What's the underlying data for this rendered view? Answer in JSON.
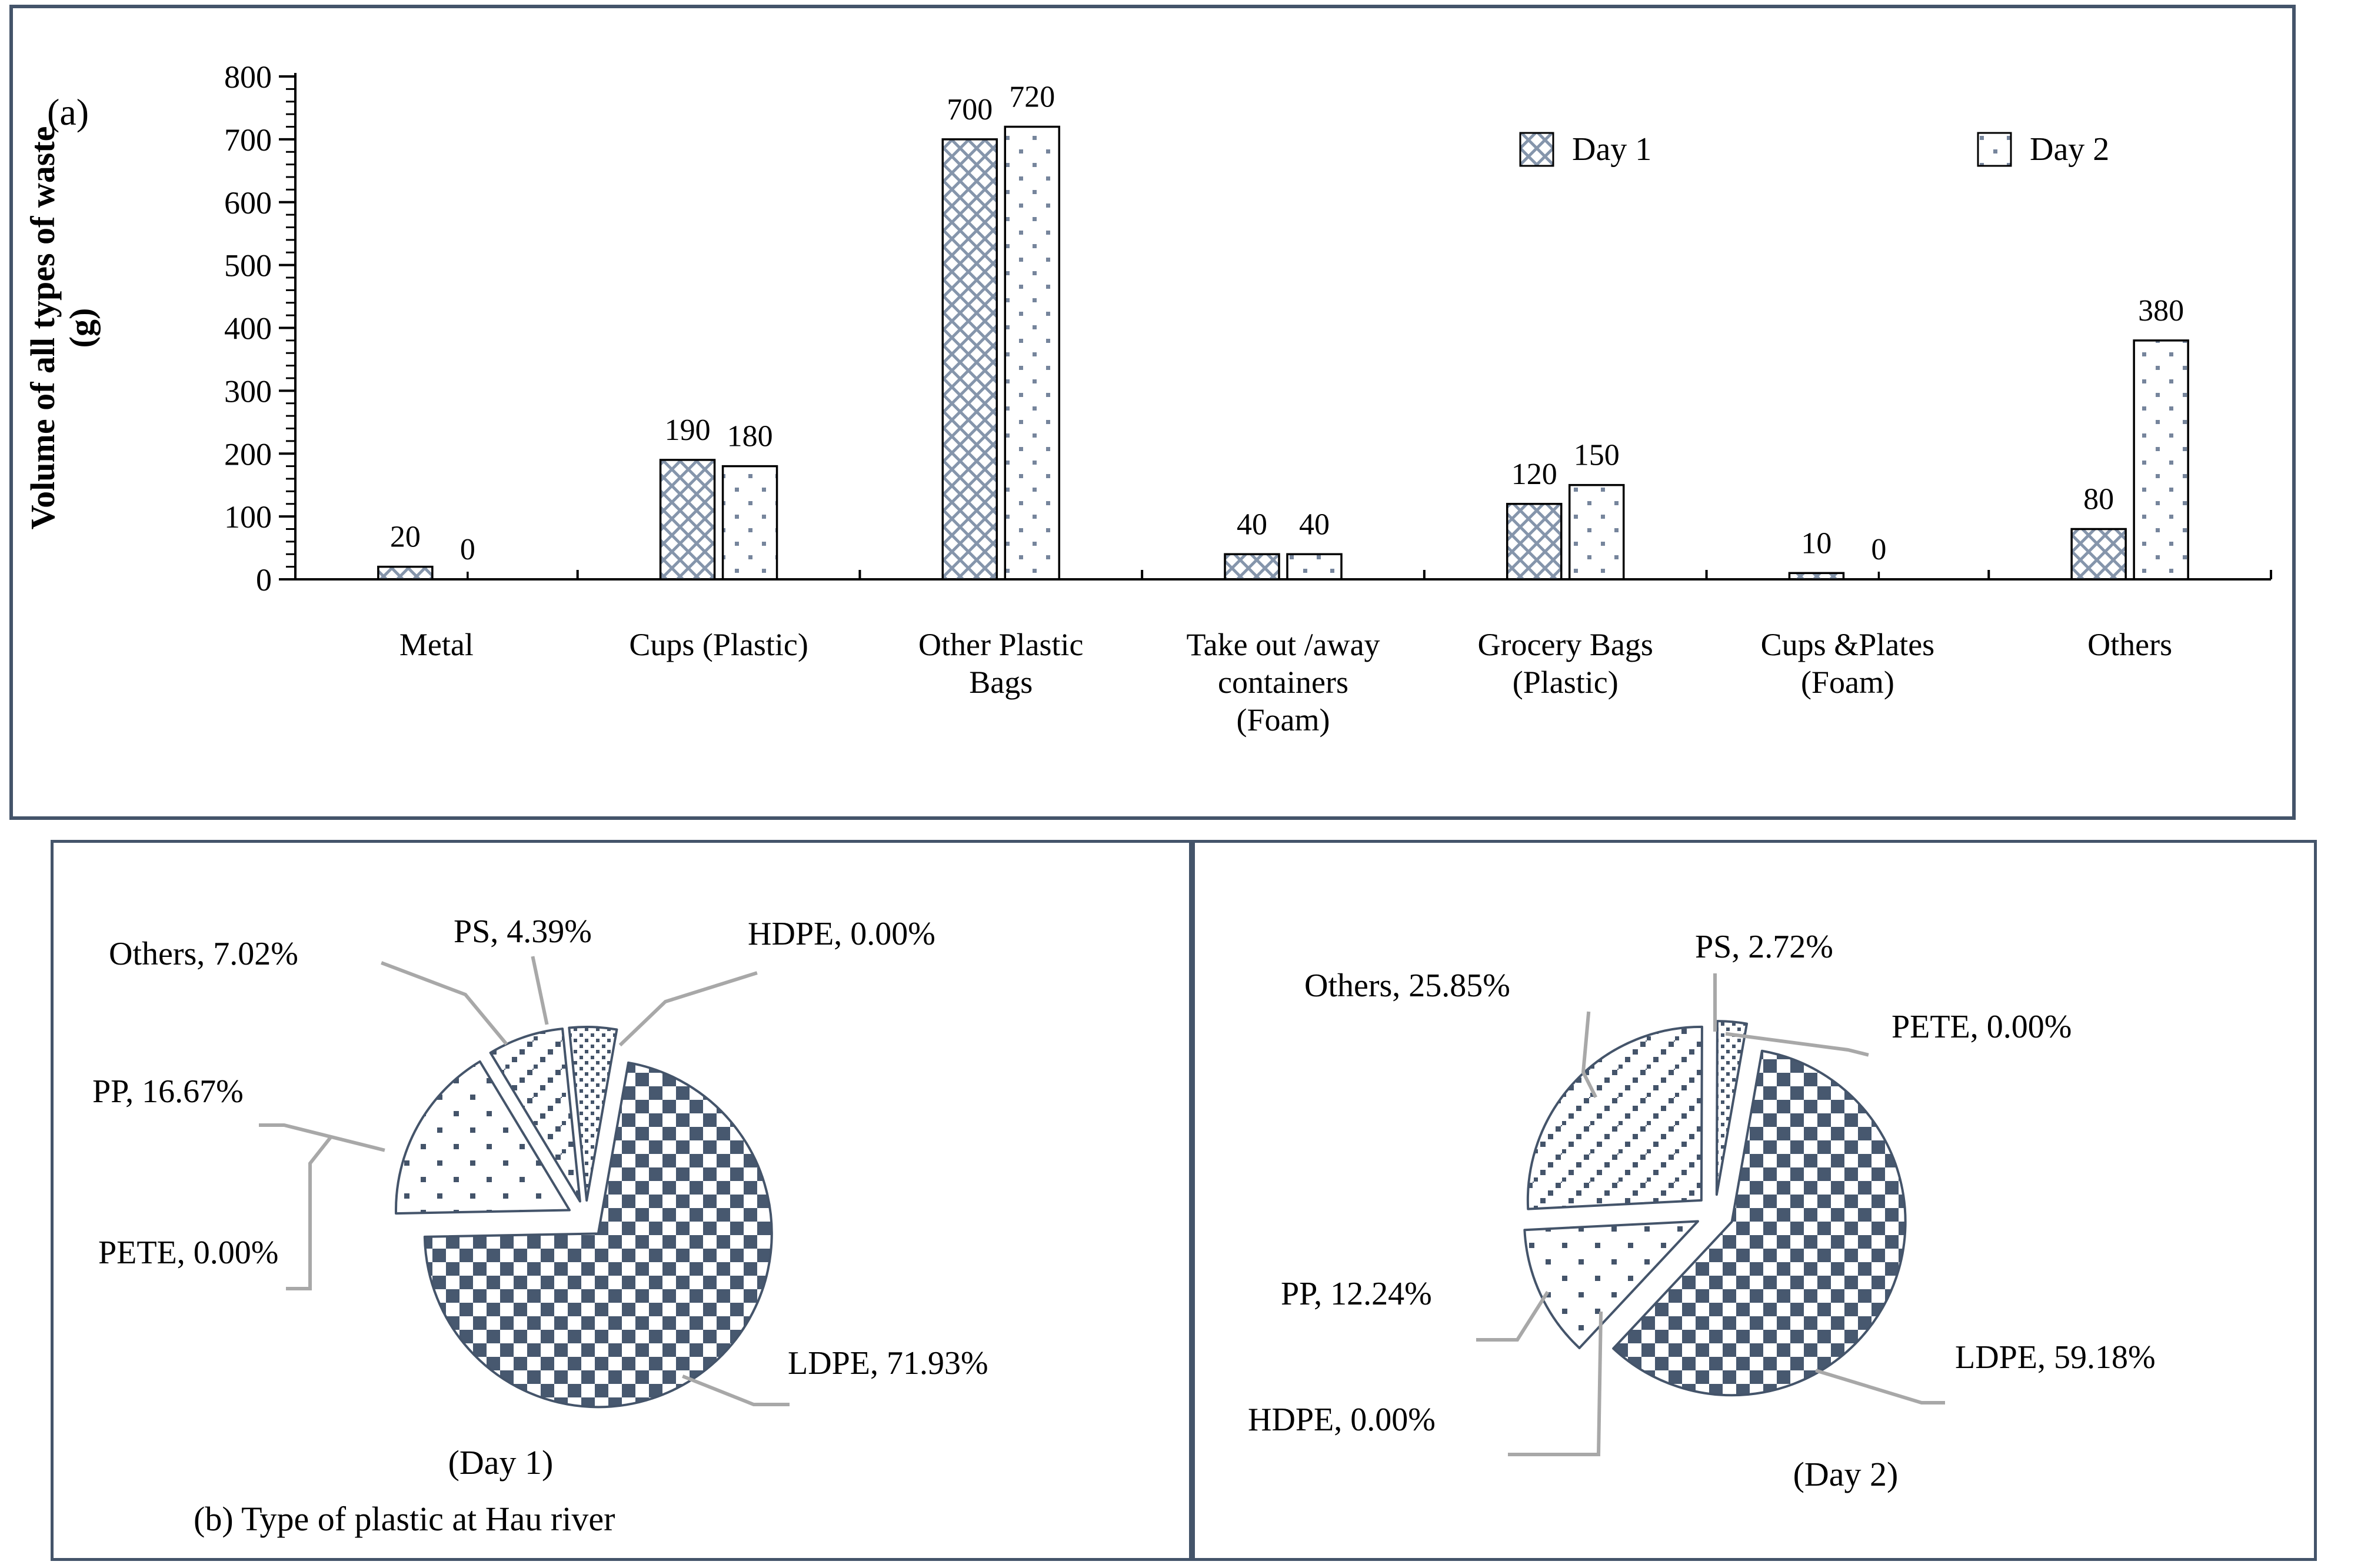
{
  "figure": {
    "panel_a_tag": "(a)",
    "panel_b_caption": "(b) Type of plastic at Hau river"
  },
  "colors": {
    "slate": "#44546A",
    "pattern_light": "#8595AB",
    "dot_light": "#76859C",
    "checker": "#47586F",
    "leader": "#A8A8A8",
    "axis": "#000000"
  },
  "chart_data": [
    {
      "type": "bar",
      "title": "",
      "ylabel_lines": [
        "Volume of all types of waste",
        "(g)"
      ],
      "ylim": [
        0,
        800
      ],
      "ytick_step": 100,
      "minor_step": 20,
      "grid": false,
      "legend_position": "top-right",
      "categories": [
        [
          "Metal"
        ],
        [
          "Cups (Plastic)"
        ],
        [
          "Other Plastic",
          "Bags"
        ],
        [
          "Take out /away",
          "containers",
          "(Foam)"
        ],
        [
          "Grocery Bags",
          "(Plastic)"
        ],
        [
          "Cups &Plates",
          "(Foam)"
        ],
        [
          "Others"
        ]
      ],
      "series": [
        {
          "name": "Day 1",
          "pattern": "xhatch",
          "values": [
            20,
            190,
            700,
            40,
            120,
            10,
            80
          ]
        },
        {
          "name": "Day 2",
          "pattern": "bardot",
          "values": [
            0,
            180,
            720,
            40,
            150,
            0,
            380
          ]
        }
      ]
    },
    {
      "type": "pie",
      "caption": "(Day 1)",
      "start_angle_deg": 10,
      "slices": [
        {
          "name": "LDPE",
          "value": 71.93,
          "label": "LDPE, 71.93%",
          "pattern": "checker"
        },
        {
          "name": "PP",
          "value": 16.67,
          "label": "PP, 16.67%",
          "pattern": "ppdot"
        },
        {
          "name": "Others",
          "value": 7.02,
          "label": "Others, 7.02%",
          "pattern": "diag"
        },
        {
          "name": "PS",
          "value": 4.39,
          "label": "PS, 4.39%",
          "pattern": "fine"
        },
        {
          "name": "PETE",
          "value": 0.0,
          "label": "PETE, 0.00%",
          "pattern": "none"
        },
        {
          "name": "HDPE",
          "value": 0.0,
          "label": "HDPE, 0.00%",
          "pattern": "none"
        }
      ]
    },
    {
      "type": "pie",
      "caption": "(Day 2)",
      "start_angle_deg": 10,
      "slices": [
        {
          "name": "LDPE",
          "value": 59.18,
          "label": "LDPE, 59.18%",
          "pattern": "checker"
        },
        {
          "name": "PP",
          "value": 12.24,
          "label": "PP, 12.24%",
          "pattern": "ppdot"
        },
        {
          "name": "Others",
          "value": 25.85,
          "label": "Others, 25.85%",
          "pattern": "diag"
        },
        {
          "name": "PS",
          "value": 2.72,
          "label": "PS, 2.72%",
          "pattern": "fine"
        },
        {
          "name": "PETE",
          "value": 0.0,
          "label": "PETE, 0.00%",
          "pattern": "none"
        },
        {
          "name": "HDPE",
          "value": 0.0,
          "label": "HDPE, 0.00%",
          "pattern": "none"
        }
      ]
    }
  ]
}
